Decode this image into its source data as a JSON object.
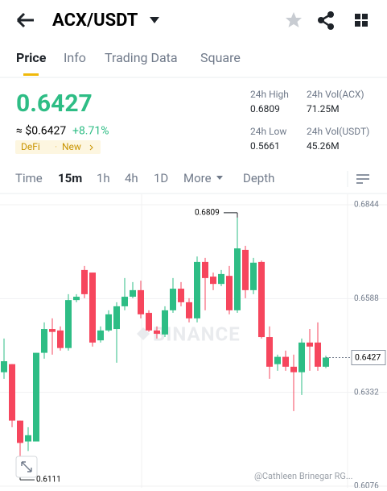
{
  "header": {
    "pair": "ACX/USDT"
  },
  "tabs": [
    "Price",
    "Info",
    "Trading Data",
    "Square"
  ],
  "summary": {
    "price": "0.6427",
    "fiat": "≈ $0.6427",
    "change": "+8.71%",
    "tags": [
      "DeFi",
      "New"
    ],
    "stats": [
      {
        "label": "24h High",
        "value": "0.6809"
      },
      {
        "label": "24h Vol(ACX)",
        "value": "71.25M"
      },
      {
        "label": "24h Low",
        "value": "0.5661"
      },
      {
        "label": "24h Vol(USDT)",
        "value": "45.26M"
      }
    ]
  },
  "intervals": [
    "Time",
    "15m",
    "1h",
    "4h",
    "1D",
    "More",
    "Depth"
  ],
  "chart_data": {
    "type": "candlestick",
    "watermark": "BINANCE",
    "credit": "@Cathleen Brinegar RG...",
    "up_color": "#2ebd85",
    "down_color": "#f6465d",
    "ylim": [
      0.6076,
      0.6844
    ],
    "yticks": [
      0.6844,
      0.6588,
      0.6332,
      0.6076
    ],
    "high_mark": 0.6809,
    "low_mark": 0.6111,
    "last": 0.6427,
    "open": [
      0.6387,
      0.6409,
      0.6255,
      0.6198,
      0.6198,
      0.644,
      0.6505,
      0.6501,
      0.6453,
      0.6584,
      0.6666,
      0.6659,
      0.6474,
      0.6501,
      0.6505,
      0.6567,
      0.6593,
      0.6611,
      0.6549,
      0.6501,
      0.649,
      0.6556,
      0.6615,
      0.6578,
      0.6534,
      0.6688,
      0.6648,
      0.6628,
      0.665,
      0.6556,
      0.6721,
      0.6611,
      0.6688,
      0.6483,
      0.6409,
      0.6429,
      0.6402,
      0.6387,
      0.6468,
      0.6468,
      0.6402
    ],
    "high": [
      0.6479,
      0.6409,
      0.6255,
      0.6237,
      0.644,
      0.6523,
      0.6534,
      0.6512,
      0.66,
      0.66,
      0.6677,
      0.6659,
      0.6512,
      0.6556,
      0.6578,
      0.6644,
      0.6633,
      0.6637,
      0.6556,
      0.6512,
      0.6567,
      0.6644,
      0.6633,
      0.6589,
      0.6703,
      0.6699,
      0.6659,
      0.6666,
      0.6677,
      0.6809,
      0.6732,
      0.6699,
      0.6692,
      0.6512,
      0.6435,
      0.6446,
      0.6435,
      0.6479,
      0.6505,
      0.6523,
      0.6432
    ],
    "low": [
      0.6369,
      0.6237,
      0.6111,
      0.6172,
      0.6198,
      0.6424,
      0.6435,
      0.6446,
      0.6446,
      0.6578,
      0.6589,
      0.6457,
      0.6468,
      0.6497,
      0.6413,
      0.6556,
      0.6589,
      0.6534,
      0.6497,
      0.6479,
      0.6483,
      0.6549,
      0.6567,
      0.6523,
      0.6523,
      0.6556,
      0.6611,
      0.6622,
      0.6545,
      0.6549,
      0.6589,
      0.66,
      0.6479,
      0.6369,
      0.6391,
      0.6391,
      0.6281,
      0.6325,
      0.6391,
      0.6391,
      0.6398
    ],
    "close": [
      0.6417,
      0.6255,
      0.6194,
      0.6215,
      0.644,
      0.6505,
      0.6497,
      0.6453,
      0.6584,
      0.6593,
      0.66,
      0.6468,
      0.6501,
      0.6545,
      0.6567,
      0.6593,
      0.6611,
      0.6545,
      0.6501,
      0.6492,
      0.6556,
      0.6615,
      0.6578,
      0.6534,
      0.6688,
      0.6644,
      0.6628,
      0.6655,
      0.6556,
      0.6725,
      0.6611,
      0.6686,
      0.6483,
      0.6402,
      0.6429,
      0.6402,
      0.6387,
      0.6468,
      0.6457,
      0.6402,
      0.6427
    ]
  }
}
